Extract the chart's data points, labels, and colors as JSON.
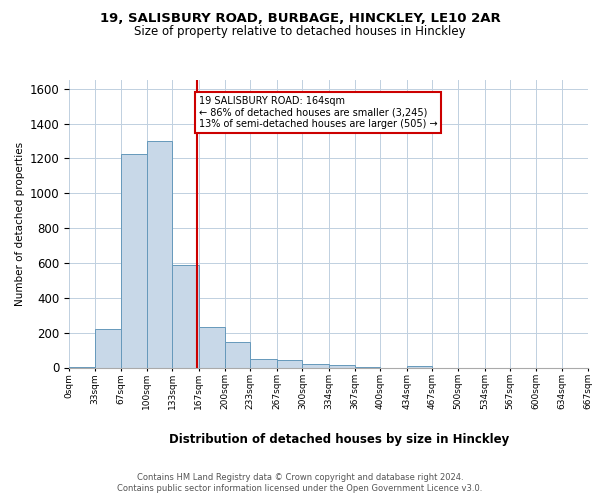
{
  "title_line1": "19, SALISBURY ROAD, BURBAGE, HINCKLEY, LE10 2AR",
  "title_line2": "Size of property relative to detached houses in Hinckley",
  "xlabel": "Distribution of detached houses by size in Hinckley",
  "ylabel": "Number of detached properties",
  "annotation_line1": "19 SALISBURY ROAD: 164sqm",
  "annotation_line2": "← 86% of detached houses are smaller (3,245)",
  "annotation_line3": "13% of semi-detached houses are larger (505) →",
  "footer_line1": "Contains HM Land Registry data © Crown copyright and database right 2024.",
  "footer_line2": "Contains public sector information licensed under the Open Government Licence v3.0.",
  "bar_color": "#c8d8e8",
  "bar_edge_color": "#6699bb",
  "red_line_x": 164,
  "annotation_box_color": "#ffffff",
  "annotation_box_edge": "#cc0000",
  "bin_edges": [
    0,
    33,
    67,
    100,
    133,
    167,
    200,
    233,
    267,
    300,
    334,
    367,
    400,
    434,
    467,
    500,
    534,
    567,
    600,
    634,
    667
  ],
  "bin_labels": [
    "0sqm",
    "33sqm",
    "67sqm",
    "100sqm",
    "133sqm",
    "167sqm",
    "200sqm",
    "233sqm",
    "267sqm",
    "300sqm",
    "334sqm",
    "367sqm",
    "400sqm",
    "434sqm",
    "467sqm",
    "500sqm",
    "534sqm",
    "567sqm",
    "600sqm",
    "634sqm",
    "667sqm"
  ],
  "bar_heights": [
    5,
    220,
    1225,
    1300,
    590,
    235,
    145,
    50,
    45,
    20,
    15,
    5,
    0,
    10,
    0,
    0,
    0,
    0,
    0,
    0
  ],
  "ylim": [
    0,
    1650
  ],
  "background_color": "#ffffff",
  "grid_color": "#c0d0e0"
}
